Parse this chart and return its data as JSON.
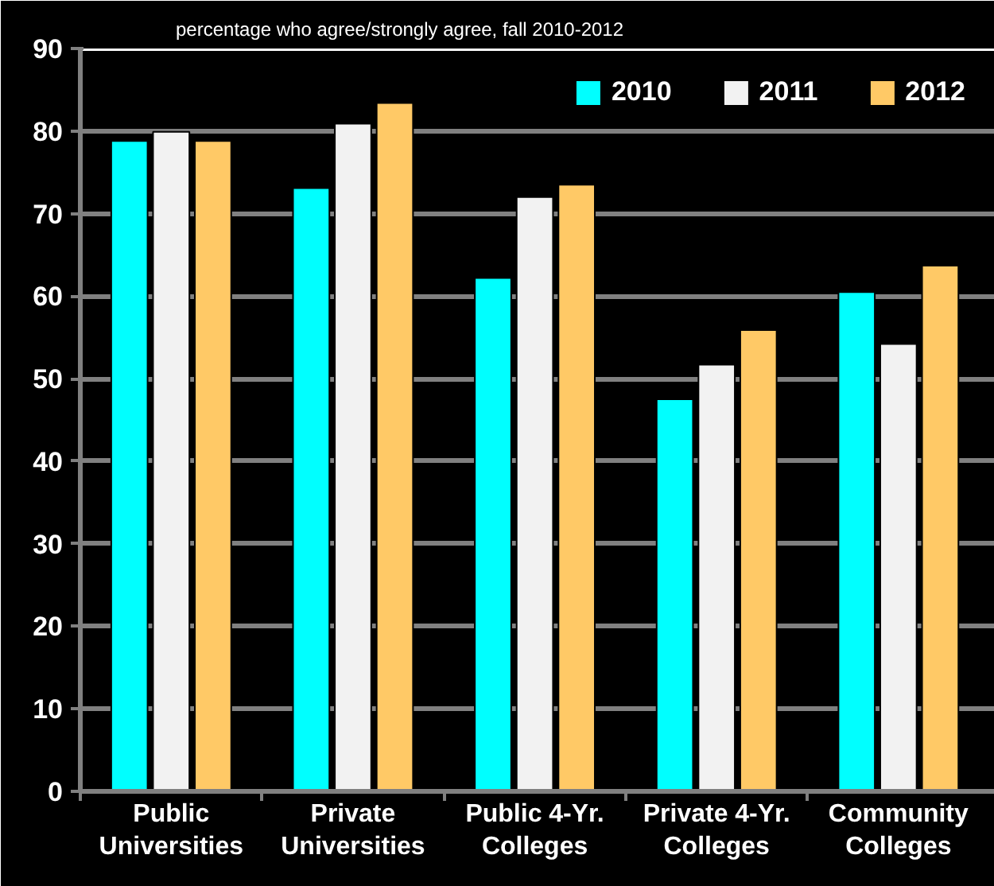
{
  "chart_data": {
    "type": "bar",
    "title": "percentage who agree/strongly agree, fall 2010-2012",
    "categories": [
      "Public\nUniversities",
      "Private\nUniversities",
      "Public 4-Yr.\nColleges",
      "Private 4-Yr.\nColleges",
      "Community\nColleges"
    ],
    "series": [
      {
        "name": "2010",
        "color": "#00ffff",
        "values": [
          78.8,
          73.1,
          62.2,
          47.5,
          60.5
        ]
      },
      {
        "name": "2011",
        "color": "#f2f2f2",
        "values": [
          79.9,
          80.9,
          72.0,
          51.7,
          54.2
        ]
      },
      {
        "name": "2012",
        "color": "#ffc966",
        "values": [
          78.8,
          83.4,
          73.5,
          55.9,
          63.7
        ]
      }
    ],
    "ylim": [
      0,
      90
    ],
    "yticks": [
      0,
      10,
      20,
      30,
      40,
      50,
      60,
      70,
      80,
      90
    ],
    "grid": "y",
    "legend": "top right"
  }
}
